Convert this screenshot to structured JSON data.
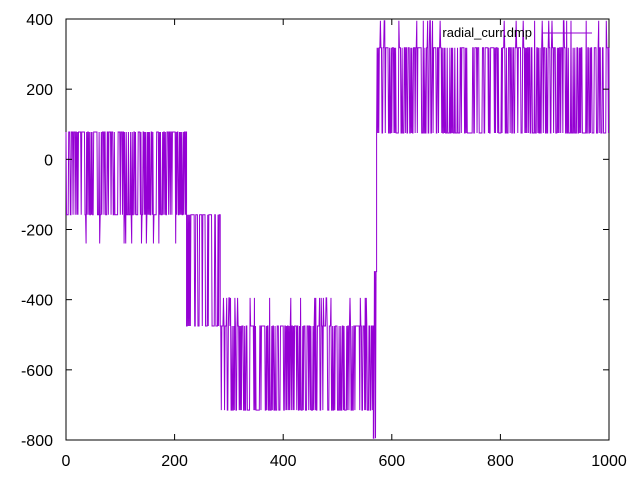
{
  "chart_data": {
    "type": "line",
    "title": "",
    "xlabel": "",
    "ylabel": "",
    "xlim": [
      0,
      1000
    ],
    "ylim": [
      -800,
      400
    ],
    "x_ticks": [
      0,
      200,
      400,
      600,
      800,
      1000
    ],
    "y_ticks": [
      -800,
      -600,
      -400,
      -200,
      0,
      200,
      400
    ],
    "x_tick_labels": [
      "0",
      "200",
      "400",
      "600",
      "800",
      "1000"
    ],
    "y_tick_labels": [
      "-800",
      "-600",
      "-400",
      "-200",
      "0",
      "200",
      "400"
    ],
    "grid": false,
    "legend_position": "top-right",
    "series": [
      {
        "name": "radial_curr.dmp",
        "color": "#9400d3",
        "segments": [
          {
            "x_start": 0,
            "x_end": 222,
            "high": 78,
            "low": -158,
            "spike_low": -240
          },
          {
            "x_start": 222,
            "x_end": 284,
            "high": -158,
            "low": -475,
            "spike_low": -475
          },
          {
            "x_start": 284,
            "x_end": 566,
            "high": -475,
            "low": -715,
            "spike_high": -395,
            "spike_low": -715
          },
          {
            "x_start": 566,
            "x_end": 572,
            "high": -320,
            "low": -795,
            "spike_low": -795
          },
          {
            "x_start": 572,
            "x_end": 1000,
            "high": 318,
            "low": 75,
            "spike_high": 395
          }
        ]
      }
    ]
  }
}
